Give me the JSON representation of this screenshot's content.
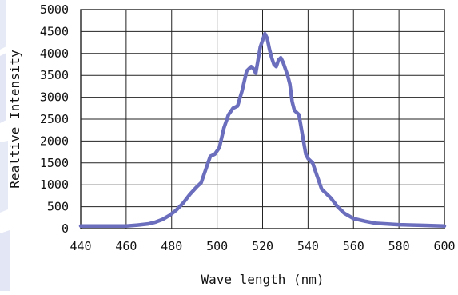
{
  "chart_data": {
    "type": "line",
    "title": "",
    "xlabel": "Wave length (nm)",
    "ylabel": "Realtive Intensity",
    "xlim": [
      440,
      600
    ],
    "ylim": [
      0,
      5000
    ],
    "x_ticks": [
      440,
      460,
      480,
      500,
      520,
      540,
      560,
      580,
      600
    ],
    "y_ticks": [
      0,
      500,
      1000,
      1500,
      2000,
      2500,
      3000,
      3500,
      4000,
      4500,
      5000
    ],
    "grid": true,
    "legend": "none",
    "series": [
      {
        "color": "#6b6ebd",
        "x": [
          440,
          450,
          460,
          465,
          470,
          473,
          476,
          479,
          482,
          485,
          488,
          491,
          493,
          495,
          497,
          499,
          501,
          503,
          505,
          507,
          509,
          511,
          513,
          515,
          516,
          517,
          518,
          519,
          520,
          521,
          522,
          523,
          524,
          525,
          526,
          527,
          528,
          529,
          530,
          531,
          532,
          533,
          534,
          535,
          536,
          537,
          538,
          539,
          540,
          542,
          544,
          546,
          548,
          550,
          553,
          556,
          560,
          565,
          570,
          580,
          590,
          600
        ],
        "y": [
          60,
          60,
          60,
          80,
          110,
          150,
          210,
          300,
          420,
          580,
          780,
          950,
          1050,
          1350,
          1650,
          1700,
          1850,
          2300,
          2600,
          2750,
          2800,
          3150,
          3600,
          3700,
          3650,
          3550,
          3850,
          4150,
          4300,
          4450,
          4350,
          4100,
          3900,
          3750,
          3700,
          3850,
          3900,
          3800,
          3650,
          3500,
          3300,
          2900,
          2700,
          2650,
          2600,
          2300,
          2000,
          1700,
          1600,
          1500,
          1200,
          900,
          800,
          700,
          500,
          350,
          230,
          170,
          120,
          90,
          75,
          60
        ]
      }
    ]
  }
}
